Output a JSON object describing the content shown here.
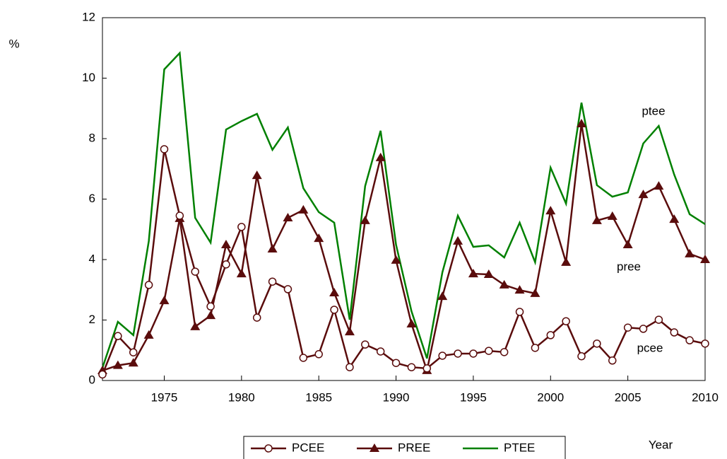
{
  "chart_data": {
    "type": "line",
    "y_label": "%",
    "x_label": "Year",
    "x": [
      1971,
      1972,
      1973,
      1974,
      1975,
      1976,
      1977,
      1978,
      1979,
      1980,
      1981,
      1982,
      1983,
      1984,
      1985,
      1986,
      1987,
      1988,
      1989,
      1990,
      1991,
      1992,
      1993,
      1994,
      1995,
      1996,
      1997,
      1998,
      1999,
      2000,
      2001,
      2002,
      2003,
      2004,
      2005,
      2006,
      2007,
      2008,
      2009,
      2010
    ],
    "series": [
      {
        "name": "PCEE",
        "color": "#5a0c0c",
        "marker": "circle",
        "values": [
          0.2,
          1.47,
          0.93,
          3.16,
          7.65,
          5.45,
          3.6,
          2.45,
          3.84,
          5.08,
          2.08,
          3.27,
          3.02,
          0.75,
          0.87,
          2.34,
          0.44,
          1.19,
          0.96,
          0.58,
          0.44,
          0.4,
          0.82,
          0.89,
          0.89,
          0.98,
          0.94,
          2.27,
          1.08,
          1.5,
          1.96,
          0.8,
          1.22,
          0.66,
          1.75,
          1.71,
          2.01,
          1.59,
          1.33,
          1.22
        ]
      },
      {
        "name": "PREE",
        "color": "#5a0c0c",
        "marker": "triangle",
        "values": [
          0.33,
          0.5,
          0.58,
          1.5,
          2.64,
          5.36,
          1.78,
          2.15,
          4.49,
          3.53,
          6.78,
          4.35,
          5.38,
          5.64,
          4.7,
          2.9,
          1.61,
          5.29,
          7.37,
          3.98,
          1.87,
          0.33,
          2.78,
          4.61,
          3.53,
          3.51,
          3.16,
          2.99,
          2.88,
          5.61,
          3.91,
          8.49,
          5.29,
          5.43,
          4.49,
          6.15,
          6.43,
          5.33,
          4.19,
          4.0
        ]
      },
      {
        "name": "PTEE",
        "color": "#008000",
        "marker": "none",
        "values": [
          0.42,
          1.94,
          1.5,
          4.61,
          10.29,
          10.83,
          5.38,
          4.56,
          8.3,
          8.58,
          8.82,
          7.63,
          8.37,
          6.36,
          5.57,
          5.22,
          2.01,
          6.43,
          8.26,
          4.49,
          2.29,
          0.73,
          3.58,
          5.45,
          4.42,
          4.47,
          4.07,
          5.22,
          3.91,
          7.04,
          5.85,
          9.19,
          6.46,
          6.08,
          6.22,
          7.84,
          8.42,
          6.81,
          5.5,
          5.17
        ]
      }
    ],
    "annotations": [
      "ptee",
      "pree",
      "pcee"
    ],
    "xlim": [
      1971,
      2010
    ],
    "xticks": [
      1975,
      1980,
      1985,
      1990,
      1995,
      2000,
      2005,
      2010
    ],
    "ylim": [
      0,
      12
    ],
    "yticks": [
      0,
      2,
      4,
      6,
      8,
      10,
      12
    ],
    "grid": false
  }
}
